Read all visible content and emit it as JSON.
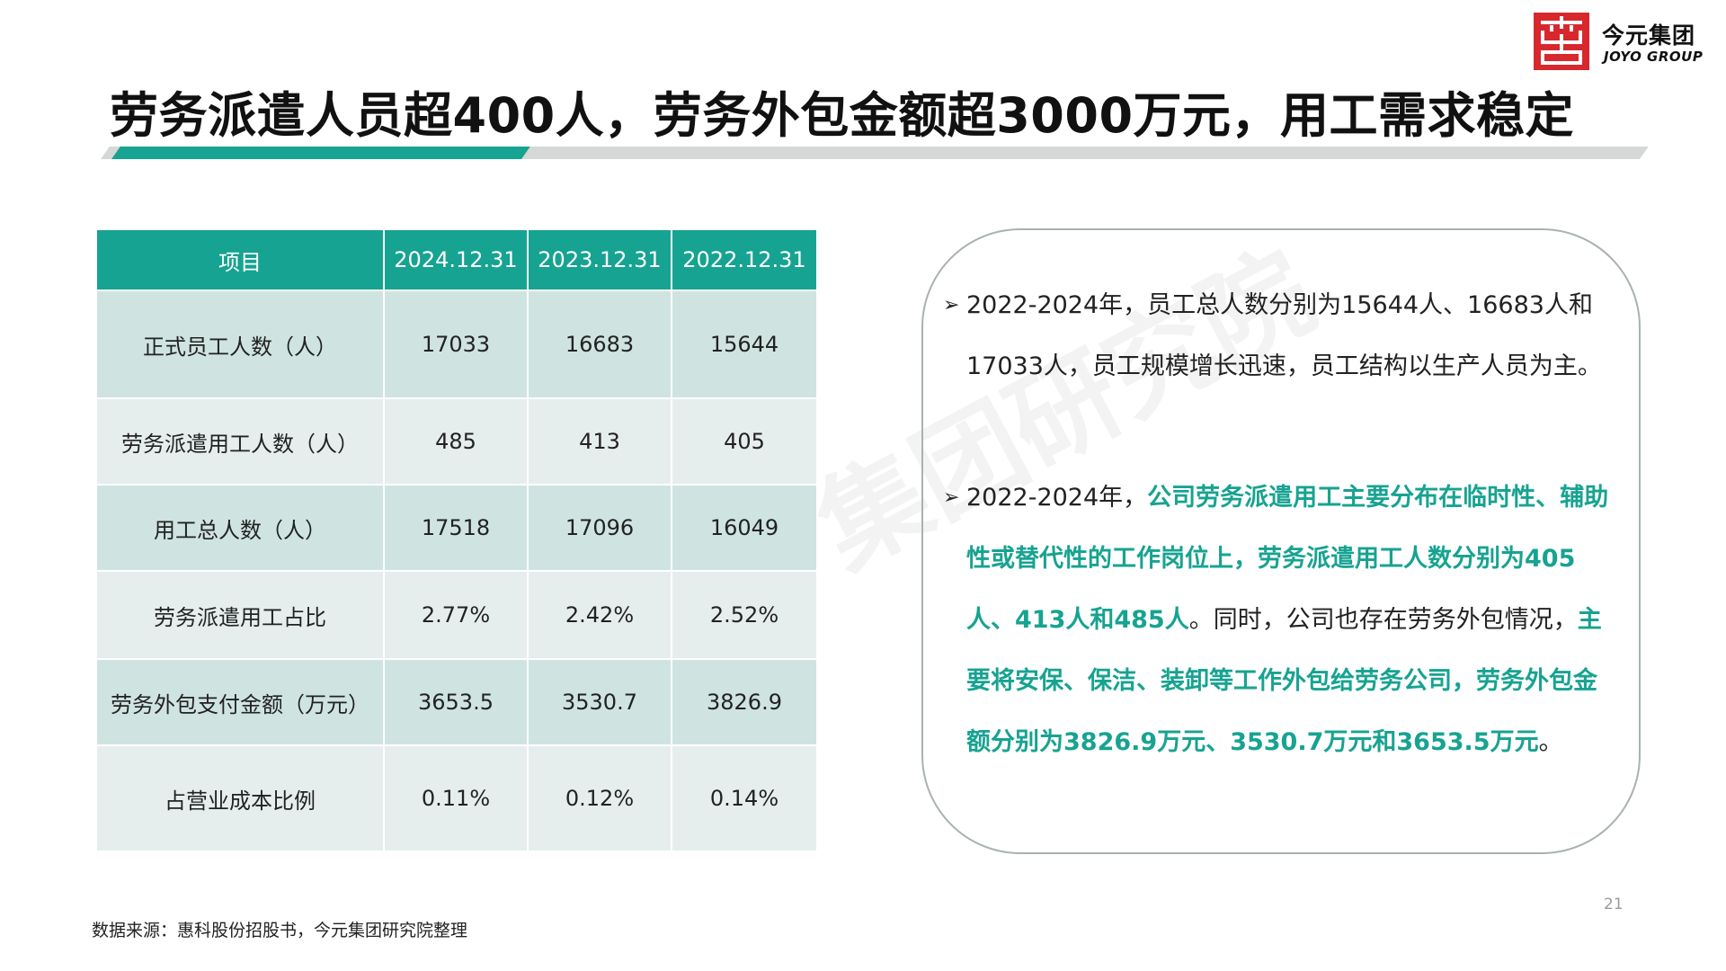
{
  "logo": {
    "name_cn": "今元集团",
    "name_en": "JOYO GROUP",
    "brand_color": "#d7282e"
  },
  "title": "劳务派遣人员超400人，劳务外包金额超3000万元，用工需求稳定",
  "watermark": "集团研究院",
  "accent_color": "#17a391",
  "table": {
    "headers": [
      "项目",
      "2024.12.31",
      "2023.12.31",
      "2022.12.31"
    ],
    "rows": [
      [
        "正式员工人数（人）",
        "17033",
        "16683",
        "15644"
      ],
      [
        "劳务派遣用工人数（人）",
        "485",
        "413",
        "405"
      ],
      [
        "用工总人数（人）",
        "17518",
        "17096",
        "16049"
      ],
      [
        "劳务派遣用工占比",
        "2.77%",
        "2.42%",
        "2.52%"
      ],
      [
        "劳务外包支付金额（万元）",
        "3653.5",
        "3530.7",
        "3826.9"
      ],
      [
        "占营业成本比例",
        "0.11%",
        "0.12%",
        "0.14%"
      ]
    ]
  },
  "panel": {
    "arrow": "➢",
    "bullet1": "2022-2024年，员工总人数分别为15644人、16683人和17033人，员工规模增长迅速，员工结构以生产人员为主。",
    "bullet2": {
      "p1": "2022-2024年，",
      "p2": "公司劳务派遣用工主要分布在临时性、辅助性或替代性的工作岗位上，劳务派遣用工人数分别为405人、413人和485人",
      "p3": "。同时，公司也存在劳务外包情况，",
      "p4": "主要将安保、保洁、装卸等工作外包给劳务公司，劳务外包金额分别为3826.9万元、3530.7万元和3653.5万元",
      "p5": "。"
    }
  },
  "page_number": "21",
  "source": "数据来源：惠科股份招股书，今元集团研究院整理"
}
